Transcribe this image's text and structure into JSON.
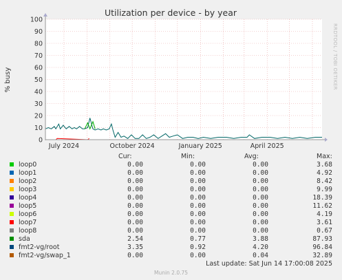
{
  "chart_data": {
    "type": "line",
    "title": "Utilization per device - by year",
    "ylabel": "% busy",
    "ylim": [
      0,
      100
    ],
    "yticks": [
      "0",
      "10",
      "20",
      "30",
      "40",
      "50",
      "60",
      "70",
      "80",
      "90",
      "100"
    ],
    "x_range": [
      "2024-06-06",
      "2025-06-14"
    ],
    "xticks": [
      {
        "date": "2024-07-01",
        "label": "July 2024"
      },
      {
        "date": "2024-10-01",
        "label": "October 2024"
      },
      {
        "date": "2025-01-01",
        "label": "January 2025"
      },
      {
        "date": "2025-04-01",
        "label": "April 2025"
      }
    ],
    "series": [
      {
        "name": "fmt2-vg/root",
        "color": "#006666",
        "x": [
          "2024-06-06",
          "2024-06-10",
          "2024-06-14",
          "2024-06-18",
          "2024-06-20",
          "2024-06-24",
          "2024-06-26",
          "2024-06-30",
          "2024-07-04",
          "2024-07-08",
          "2024-07-12",
          "2024-07-15",
          "2024-07-18",
          "2024-07-22",
          "2024-07-26",
          "2024-07-29",
          "2024-08-02",
          "2024-08-05",
          "2024-08-09",
          "2024-08-12",
          "2024-08-16",
          "2024-08-20",
          "2024-08-23",
          "2024-08-27",
          "2024-08-31",
          "2024-09-03",
          "2024-09-05",
          "2024-09-08",
          "2024-09-12",
          "2024-09-16",
          "2024-09-20",
          "2024-09-25",
          "2024-09-30",
          "2024-10-05",
          "2024-10-10",
          "2024-10-15",
          "2024-10-20",
          "2024-10-25",
          "2024-10-30",
          "2024-11-05",
          "2024-11-10",
          "2024-11-15",
          "2024-11-20",
          "2024-11-25",
          "2024-12-01",
          "2024-12-08",
          "2024-12-15",
          "2024-12-22",
          "2024-12-29",
          "2025-01-05",
          "2025-01-15",
          "2025-01-25",
          "2025-02-05",
          "2025-02-15",
          "2025-02-25",
          "2025-03-05",
          "2025-03-08",
          "2025-03-15",
          "2025-03-25",
          "2025-04-05",
          "2025-04-15",
          "2025-04-25",
          "2025-05-05",
          "2025-05-15",
          "2025-05-25",
          "2025-06-05",
          "2025-06-14"
        ],
        "y": [
          9,
          10,
          9,
          11,
          9,
          13,
          9,
          12,
          9,
          11,
          9,
          10,
          9,
          11,
          9,
          9,
          10,
          18,
          9,
          8,
          9,
          8,
          9,
          8,
          9,
          13,
          8,
          2,
          6,
          2,
          3,
          1,
          4,
          1,
          1,
          4,
          1,
          2,
          4,
          1,
          3,
          5,
          2,
          3,
          4,
          1,
          2,
          2,
          1,
          2,
          1,
          2,
          2,
          1,
          2,
          2,
          4,
          1,
          2,
          2,
          1,
          2,
          1,
          2,
          1,
          2,
          2
        ]
      },
      {
        "name": "sda",
        "color": "#00aa00",
        "x": [
          "2024-07-29",
          "2024-08-02",
          "2024-08-05",
          "2024-08-09",
          "2024-08-12"
        ],
        "y": [
          9,
          14,
          9,
          15,
          9
        ]
      },
      {
        "name": "loop7",
        "color": "#ff0000",
        "x": [
          "2024-06-20",
          "2024-06-22",
          "2024-08-02",
          "2024-08-04"
        ],
        "y": [
          0,
          1,
          0,
          1
        ]
      }
    ]
  },
  "watermark": "RRDTOOL / TOBI OETIKER",
  "legend": {
    "headers": {
      "cur": "Cur:",
      "min": "Min:",
      "avg": "Avg:",
      "max": "Max:"
    },
    "rows": [
      {
        "name": "loop0",
        "color": "#00cc00",
        "cur": "0.00",
        "min": "0.00",
        "avg": "0.00",
        "max": "3.68"
      },
      {
        "name": "loop1",
        "color": "#0066b3",
        "cur": "0.00",
        "min": "0.00",
        "avg": "0.00",
        "max": "4.92"
      },
      {
        "name": "loop2",
        "color": "#ff8000",
        "cur": "0.00",
        "min": "0.00",
        "avg": "0.00",
        "max": "8.42"
      },
      {
        "name": "loop3",
        "color": "#ffcc00",
        "cur": "0.00",
        "min": "0.00",
        "avg": "0.00",
        "max": "9.99"
      },
      {
        "name": "loop4",
        "color": "#330099",
        "cur": "0.00",
        "min": "0.00",
        "avg": "0.00",
        "max": "18.39"
      },
      {
        "name": "loop5",
        "color": "#990099",
        "cur": "0.00",
        "min": "0.00",
        "avg": "0.00",
        "max": "11.62"
      },
      {
        "name": "loop6",
        "color": "#ccff00",
        "cur": "0.00",
        "min": "0.00",
        "avg": "0.00",
        "max": "4.19"
      },
      {
        "name": "loop7",
        "color": "#ff0000",
        "cur": "0.00",
        "min": "0.00",
        "avg": "0.00",
        "max": "3.61"
      },
      {
        "name": "loop8",
        "color": "#808080",
        "cur": "0.00",
        "min": "0.00",
        "avg": "0.00",
        "max": "0.67"
      },
      {
        "name": "sda",
        "color": "#008f00",
        "cur": "2.54",
        "min": "0.77",
        "avg": "3.88",
        "max": "87.93"
      },
      {
        "name": "fmt2-vg/root",
        "color": "#00487d",
        "cur": "3.35",
        "min": "0.92",
        "avg": "4.20",
        "max": "96.84"
      },
      {
        "name": "fmt2-vg/swap_1",
        "color": "#b35a00",
        "cur": "0.00",
        "min": "0.00",
        "avg": "0.04",
        "max": "32.89"
      }
    ]
  },
  "last_update": "Last update: Sat Jun 14 17:00:08 2025",
  "footer": "Munin 2.0.75"
}
